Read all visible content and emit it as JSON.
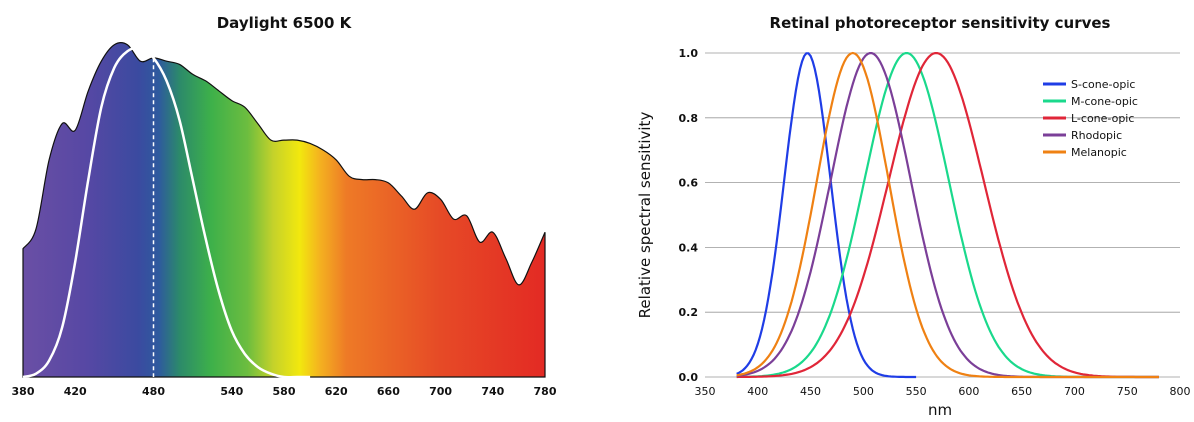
{
  "chart_data": [
    {
      "type": "area",
      "title": "Daylight 6500 K",
      "xlabel": "",
      "ylabel": "",
      "xlim": [
        380,
        780
      ],
      "x_ticks": [
        380,
        420,
        480,
        540,
        580,
        620,
        660,
        700,
        740,
        780
      ],
      "grid": false,
      "series": [
        {
          "kind": "spectrum_area",
          "x": [
            380,
            390,
            400,
            410,
            420,
            430,
            440,
            450,
            460,
            470,
            480,
            490,
            500,
            510,
            520,
            530,
            540,
            550,
            560,
            570,
            580,
            590,
            600,
            610,
            620,
            630,
            640,
            650,
            660,
            670,
            680,
            690,
            700,
            710,
            720,
            730,
            740,
            750,
            760,
            770,
            780
          ],
          "y": [
            0.39,
            0.45,
            0.66,
            0.77,
            0.75,
            0.87,
            0.96,
            1.01,
            1.01,
            0.96,
            0.97,
            0.96,
            0.95,
            0.92,
            0.9,
            0.87,
            0.84,
            0.82,
            0.77,
            0.72,
            0.72,
            0.72,
            0.71,
            0.69,
            0.66,
            0.61,
            0.6,
            0.6,
            0.59,
            0.55,
            0.51,
            0.56,
            0.54,
            0.48,
            0.49,
            0.41,
            0.44,
            0.36,
            0.28,
            0.35,
            0.44
          ]
        },
        {
          "kind": "curve",
          "x": [
            380,
            390,
            400,
            410,
            420,
            430,
            440,
            450,
            460,
            470,
            480,
            490,
            500,
            510,
            520,
            530,
            540,
            550,
            560,
            570,
            580,
            590,
            600
          ],
          "y": [
            0.0,
            0.01,
            0.05,
            0.15,
            0.35,
            0.6,
            0.82,
            0.94,
            0.99,
            1.0,
            0.97,
            0.9,
            0.78,
            0.6,
            0.42,
            0.26,
            0.14,
            0.07,
            0.03,
            0.01,
            0.0,
            0.0,
            0.0
          ]
        }
      ],
      "peak_line_x": 480
    },
    {
      "type": "line",
      "title": "Retinal photoreceptor sensitivity curves",
      "xlabel": "nm",
      "ylabel": "Relative spectral sensitivity",
      "xlim": [
        350,
        800
      ],
      "ylim": [
        0,
        1.0
      ],
      "x_ticks": [
        350,
        400,
        450,
        500,
        550,
        600,
        650,
        700,
        750,
        800
      ],
      "y_ticks": [
        0.0,
        0.2,
        0.4,
        0.6,
        0.8,
        1.0
      ],
      "grid": true,
      "legend_position": "top-right",
      "series": [
        {
          "name": "S-cone-opic",
          "color": "#1f3de6",
          "peak": 447,
          "width": 22,
          "x_start": 380,
          "x_end": 550
        },
        {
          "name": "M-cone-opic",
          "color": "#1ad98c",
          "peak": 541,
          "width": 40,
          "x_start": 380,
          "x_end": 780
        },
        {
          "name": "L-cone-opic",
          "color": "#e02638",
          "peak": 569,
          "width": 45,
          "x_start": 380,
          "x_end": 780
        },
        {
          "name": "Rhodopic",
          "color": "#7b3f98",
          "peak": 507,
          "width": 38,
          "x_start": 380,
          "x_end": 780
        },
        {
          "name": "Melanopic",
          "color": "#ef8113",
          "peak": 490,
          "width": 34,
          "x_start": 380,
          "x_end": 780
        }
      ]
    }
  ]
}
